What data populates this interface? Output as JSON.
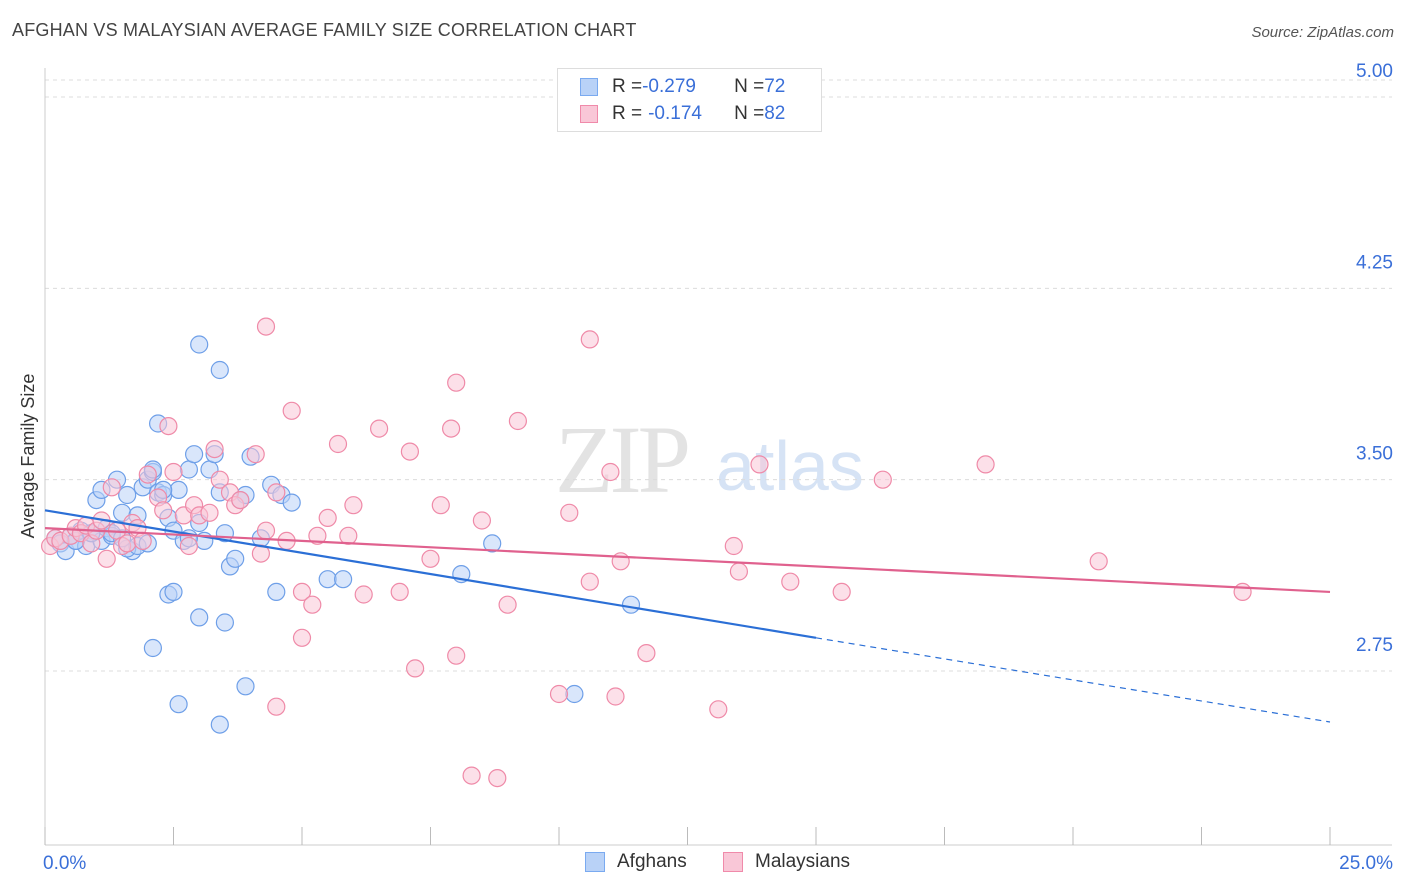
{
  "title": "AFGHAN VS MALAYSIAN AVERAGE FAMILY SIZE CORRELATION CHART",
  "source": "Source: ZipAtlas.com",
  "watermark": {
    "zip": "ZIP",
    "atlas": "atlas"
  },
  "legend": {
    "rows": [
      {
        "r_label": "R = ",
        "r_value": "-0.279",
        "n_label": "N = ",
        "n_value": "72",
        "color": "#7aaaf0",
        "fill": "#b9d2f7"
      },
      {
        "r_label": "R = ",
        "r_value": "-0.174",
        "n_label": "N = ",
        "n_value": "82",
        "color": "#f08aaa",
        "fill": "#f9c7d7"
      }
    ]
  },
  "bottom_legend": [
    {
      "label": "Afghans",
      "color": "#7aaaf0",
      "fill": "#b9d2f7"
    },
    {
      "label": "Malaysians",
      "color": "#f08aaa",
      "fill": "#f9c7d7"
    }
  ],
  "chart_data": {
    "type": "scatter",
    "title": "AFGHAN VS MALAYSIAN AVERAGE FAMILY SIZE CORRELATION CHART",
    "xlabel": "",
    "ylabel": "Average Family Size",
    "xlim": [
      0,
      25
    ],
    "ylim": [
      2.0,
      5.1
    ],
    "x_tick_labels": [
      "0.0%",
      "25.0%"
    ],
    "y_ticks": [
      2.75,
      3.5,
      4.25,
      5.0
    ],
    "y_tick_labels": [
      "2.75",
      "3.50",
      "4.25",
      "5.00"
    ],
    "grid": true,
    "series": [
      {
        "name": "Afghans",
        "stroke": "#6e9fe8",
        "fill": "#b9d2f7",
        "trend_color": "#2b6fd6",
        "trend": {
          "x0": 0,
          "y0": 3.38,
          "x1": 15.0,
          "y1": 2.88,
          "dash_to_x": 25.0,
          "dash_to_y": 2.55
        },
        "points": [
          [
            0.2,
            3.27
          ],
          [
            0.3,
            3.25
          ],
          [
            0.4,
            3.22
          ],
          [
            0.5,
            3.28
          ],
          [
            0.6,
            3.26
          ],
          [
            0.7,
            3.3
          ],
          [
            0.8,
            3.24
          ],
          [
            0.9,
            3.29
          ],
          [
            1.0,
            3.42
          ],
          [
            1.1,
            3.26
          ],
          [
            1.2,
            3.31
          ],
          [
            1.1,
            3.46
          ],
          [
            1.3,
            3.28
          ],
          [
            1.4,
            3.5
          ],
          [
            1.5,
            3.37
          ],
          [
            1.6,
            3.44
          ],
          [
            1.7,
            3.22
          ],
          [
            1.8,
            3.36
          ],
          [
            1.6,
            3.23
          ],
          [
            1.9,
            3.47
          ],
          [
            2.0,
            3.5
          ],
          [
            2.1,
            3.53
          ],
          [
            2.2,
            3.45
          ],
          [
            2.3,
            3.44
          ],
          [
            2.4,
            3.35
          ],
          [
            2.5,
            3.3
          ],
          [
            2.6,
            3.46
          ],
          [
            2.7,
            3.26
          ],
          [
            2.8,
            3.54
          ],
          [
            2.9,
            3.6
          ],
          [
            2.3,
            3.46
          ],
          [
            3.0,
            3.33
          ],
          [
            3.1,
            3.26
          ],
          [
            3.2,
            3.54
          ],
          [
            3.3,
            3.6
          ],
          [
            3.4,
            3.45
          ],
          [
            3.5,
            3.29
          ],
          [
            3.6,
            3.16
          ],
          [
            3.7,
            3.19
          ],
          [
            2.2,
            3.72
          ],
          [
            2.1,
            3.54
          ],
          [
            3.0,
            4.03
          ],
          [
            3.4,
            3.93
          ],
          [
            3.8,
            3.42
          ],
          [
            3.9,
            3.44
          ],
          [
            4.0,
            3.59
          ],
          [
            4.2,
            3.27
          ],
          [
            4.4,
            3.48
          ],
          [
            4.6,
            3.44
          ],
          [
            4.8,
            3.41
          ],
          [
            4.5,
            3.06
          ],
          [
            5.5,
            3.11
          ],
          [
            5.8,
            3.11
          ],
          [
            2.4,
            3.05
          ],
          [
            2.5,
            3.06
          ],
          [
            3.0,
            2.96
          ],
          [
            3.5,
            2.94
          ],
          [
            2.1,
            2.84
          ],
          [
            2.6,
            2.62
          ],
          [
            3.4,
            2.54
          ],
          [
            3.9,
            2.69
          ],
          [
            8.1,
            3.13
          ],
          [
            8.7,
            3.25
          ],
          [
            11.4,
            3.01
          ],
          [
            10.3,
            2.66
          ],
          [
            2.8,
            3.27
          ],
          [
            1.3,
            3.29
          ],
          [
            0.6,
            3.26
          ],
          [
            0.9,
            3.29
          ],
          [
            1.5,
            3.27
          ],
          [
            1.8,
            3.24
          ],
          [
            2.0,
            3.25
          ]
        ]
      },
      {
        "name": "Malaysians",
        "stroke": "#ef8aa8",
        "fill": "#f9c7d7",
        "trend_color": "#e0618e",
        "trend": {
          "x0": 0,
          "y0": 3.31,
          "x1": 25.0,
          "y1": 3.06
        },
        "points": [
          [
            0.1,
            3.24
          ],
          [
            0.2,
            3.27
          ],
          [
            0.3,
            3.26
          ],
          [
            0.5,
            3.28
          ],
          [
            0.6,
            3.31
          ],
          [
            0.7,
            3.29
          ],
          [
            0.8,
            3.32
          ],
          [
            0.9,
            3.25
          ],
          [
            1.0,
            3.3
          ],
          [
            1.1,
            3.34
          ],
          [
            1.2,
            3.19
          ],
          [
            1.3,
            3.47
          ],
          [
            1.4,
            3.3
          ],
          [
            1.5,
            3.24
          ],
          [
            1.6,
            3.25
          ],
          [
            1.7,
            3.33
          ],
          [
            1.8,
            3.31
          ],
          [
            1.9,
            3.26
          ],
          [
            2.0,
            3.52
          ],
          [
            2.2,
            3.43
          ],
          [
            2.3,
            3.38
          ],
          [
            2.4,
            3.71
          ],
          [
            2.5,
            3.53
          ],
          [
            2.7,
            3.36
          ],
          [
            2.8,
            3.24
          ],
          [
            2.9,
            3.4
          ],
          [
            3.0,
            3.36
          ],
          [
            3.2,
            3.37
          ],
          [
            3.3,
            3.62
          ],
          [
            3.4,
            3.5
          ],
          [
            3.6,
            3.45
          ],
          [
            3.7,
            3.4
          ],
          [
            3.8,
            3.42
          ],
          [
            4.1,
            3.6
          ],
          [
            4.2,
            3.21
          ],
          [
            4.3,
            3.3
          ],
          [
            4.5,
            3.45
          ],
          [
            4.7,
            3.26
          ],
          [
            4.8,
            3.77
          ],
          [
            5.0,
            3.06
          ],
          [
            5.2,
            3.01
          ],
          [
            5.3,
            3.28
          ],
          [
            5.5,
            3.35
          ],
          [
            5.7,
            3.64
          ],
          [
            5.9,
            3.28
          ],
          [
            6.0,
            3.4
          ],
          [
            6.2,
            3.05
          ],
          [
            6.5,
            3.7
          ],
          [
            6.9,
            3.06
          ],
          [
            7.1,
            3.61
          ],
          [
            7.5,
            3.19
          ],
          [
            7.7,
            3.4
          ],
          [
            7.9,
            3.7
          ],
          [
            8.0,
            3.88
          ],
          [
            8.5,
            3.34
          ],
          [
            9.0,
            3.01
          ],
          [
            9.2,
            3.73
          ],
          [
            10.2,
            3.37
          ],
          [
            10.6,
            3.1
          ],
          [
            11.0,
            3.53
          ],
          [
            11.2,
            3.18
          ],
          [
            11.7,
            2.82
          ],
          [
            13.4,
            3.24
          ],
          [
            13.5,
            3.14
          ],
          [
            13.9,
            3.56
          ],
          [
            14.5,
            3.1
          ],
          [
            15.5,
            3.06
          ],
          [
            16.3,
            3.5
          ],
          [
            18.3,
            3.56
          ],
          [
            20.5,
            3.18
          ],
          [
            23.3,
            3.06
          ],
          [
            4.3,
            4.1
          ],
          [
            10.6,
            4.05
          ],
          [
            7.2,
            2.76
          ],
          [
            8.0,
            2.81
          ],
          [
            10.0,
            2.66
          ],
          [
            11.1,
            2.65
          ],
          [
            13.1,
            2.6
          ],
          [
            4.5,
            2.61
          ],
          [
            8.3,
            2.34
          ],
          [
            8.8,
            2.33
          ],
          [
            5.0,
            2.88
          ]
        ]
      }
    ]
  }
}
